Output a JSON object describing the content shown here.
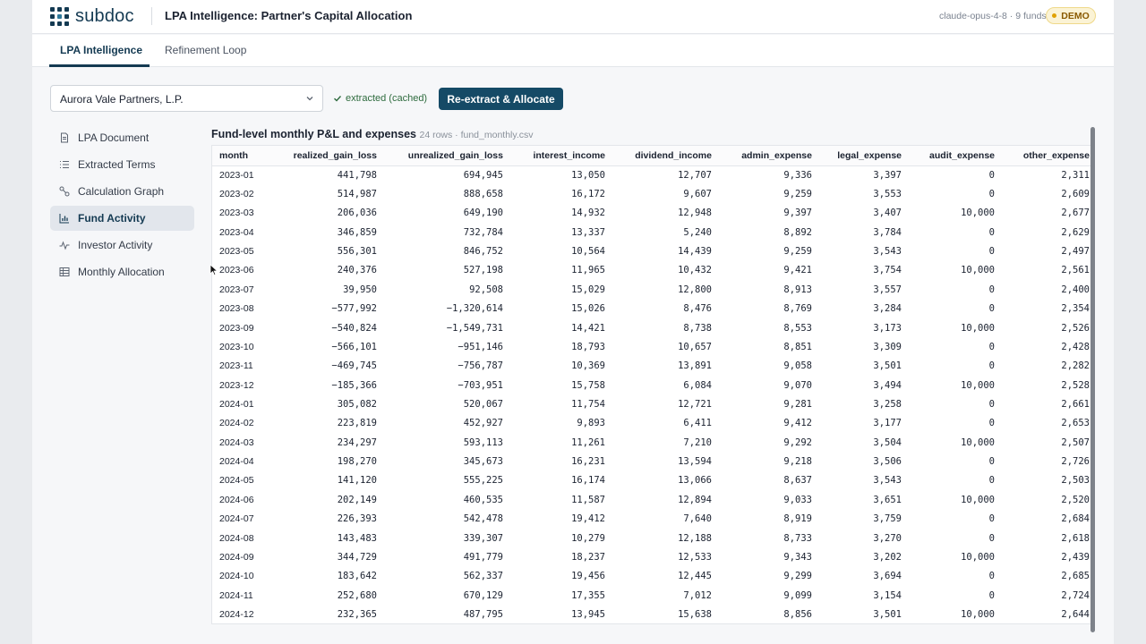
{
  "app": {
    "logo_text": "subdoc",
    "title": "LPA Intelligence: Partner's Capital Allocation",
    "model_info": "claude-opus-4-8 · 9 funds",
    "badge": "DEMO"
  },
  "tabs": [
    {
      "label": "LPA Intelligence",
      "active": true
    },
    {
      "label": "Refinement Loop",
      "active": false
    }
  ],
  "controls": {
    "fund_selected": "Aurora Vale Partners, L.P.",
    "status": "extracted (cached)",
    "primary_button": "Re-extract & Allocate"
  },
  "sidebar": {
    "items": [
      {
        "label": "LPA Document",
        "icon": "document-icon",
        "active": false
      },
      {
        "label": "Extracted Terms",
        "icon": "list-icon",
        "active": false
      },
      {
        "label": "Calculation Graph",
        "icon": "graph-icon",
        "active": false
      },
      {
        "label": "Fund Activity",
        "icon": "bar-chart-icon",
        "active": true
      },
      {
        "label": "Investor Activity",
        "icon": "activity-icon",
        "active": false
      },
      {
        "label": "Monthly Allocation",
        "icon": "table-icon",
        "active": false
      }
    ]
  },
  "panel": {
    "title": "Fund-level monthly P&L and expenses",
    "meta": "24 rows · fund_monthly.csv"
  },
  "table": {
    "columns": [
      "month",
      "realized_gain_loss",
      "unrealized_gain_loss",
      "interest_income",
      "dividend_income",
      "admin_expense",
      "legal_expense",
      "audit_expense",
      "other_expense"
    ],
    "rows": [
      [
        "2023-01",
        "441,798",
        "694,945",
        "13,050",
        "12,707",
        "9,336",
        "3,397",
        "0",
        "2,311"
      ],
      [
        "2023-02",
        "514,987",
        "888,658",
        "16,172",
        "9,607",
        "9,259",
        "3,553",
        "0",
        "2,609"
      ],
      [
        "2023-03",
        "206,036",
        "649,190",
        "14,932",
        "12,948",
        "9,397",
        "3,407",
        "10,000",
        "2,677"
      ],
      [
        "2023-04",
        "346,859",
        "732,784",
        "13,337",
        "5,240",
        "8,892",
        "3,784",
        "0",
        "2,629"
      ],
      [
        "2023-05",
        "556,301",
        "846,752",
        "10,564",
        "14,439",
        "9,259",
        "3,543",
        "0",
        "2,497"
      ],
      [
        "2023-06",
        "240,376",
        "527,198",
        "11,965",
        "10,432",
        "9,421",
        "3,754",
        "10,000",
        "2,561"
      ],
      [
        "2023-07",
        "39,950",
        "92,508",
        "15,029",
        "12,800",
        "8,913",
        "3,557",
        "0",
        "2,400"
      ],
      [
        "2023-08",
        "−577,992",
        "−1,320,614",
        "15,026",
        "8,476",
        "8,769",
        "3,284",
        "0",
        "2,354"
      ],
      [
        "2023-09",
        "−540,824",
        "−1,549,731",
        "14,421",
        "8,738",
        "8,553",
        "3,173",
        "10,000",
        "2,526"
      ],
      [
        "2023-10",
        "−566,101",
        "−951,146",
        "18,793",
        "10,657",
        "8,851",
        "3,309",
        "0",
        "2,428"
      ],
      [
        "2023-11",
        "−469,745",
        "−756,787",
        "10,369",
        "13,891",
        "9,058",
        "3,501",
        "0",
        "2,282"
      ],
      [
        "2023-12",
        "−185,366",
        "−703,951",
        "15,758",
        "6,084",
        "9,070",
        "3,494",
        "10,000",
        "2,528"
      ],
      [
        "2024-01",
        "305,082",
        "520,067",
        "11,754",
        "12,721",
        "9,281",
        "3,258",
        "0",
        "2,661"
      ],
      [
        "2024-02",
        "223,819",
        "452,927",
        "9,893",
        "6,411",
        "9,412",
        "3,177",
        "0",
        "2,653"
      ],
      [
        "2024-03",
        "234,297",
        "593,113",
        "11,261",
        "7,210",
        "9,292",
        "3,504",
        "10,000",
        "2,507"
      ],
      [
        "2024-04",
        "198,270",
        "345,673",
        "16,231",
        "13,594",
        "9,218",
        "3,506",
        "0",
        "2,726"
      ],
      [
        "2024-05",
        "141,120",
        "555,225",
        "16,174",
        "13,066",
        "8,637",
        "3,543",
        "0",
        "2,503"
      ],
      [
        "2024-06",
        "202,149",
        "460,535",
        "11,587",
        "12,894",
        "9,033",
        "3,651",
        "10,000",
        "2,520"
      ],
      [
        "2024-07",
        "226,393",
        "542,478",
        "19,412",
        "7,640",
        "8,919",
        "3,759",
        "0",
        "2,684"
      ],
      [
        "2024-08",
        "143,483",
        "339,307",
        "10,279",
        "12,188",
        "8,733",
        "3,270",
        "0",
        "2,618"
      ],
      [
        "2024-09",
        "344,729",
        "491,779",
        "18,237",
        "12,533",
        "9,343",
        "3,202",
        "10,000",
        "2,439"
      ],
      [
        "2024-10",
        "183,642",
        "562,337",
        "19,456",
        "12,445",
        "9,299",
        "3,694",
        "0",
        "2,685"
      ],
      [
        "2024-11",
        "252,680",
        "670,129",
        "17,355",
        "7,012",
        "9,099",
        "3,154",
        "0",
        "2,724"
      ],
      [
        "2024-12",
        "232,365",
        "487,795",
        "13,945",
        "15,638",
        "8,856",
        "3,501",
        "10,000",
        "2,644"
      ]
    ]
  },
  "colors": {
    "brand": "#143a52",
    "primary_button": "#154a66",
    "success": "#2e6b3e",
    "demo_badge_bg": "#fbf3d5"
  }
}
